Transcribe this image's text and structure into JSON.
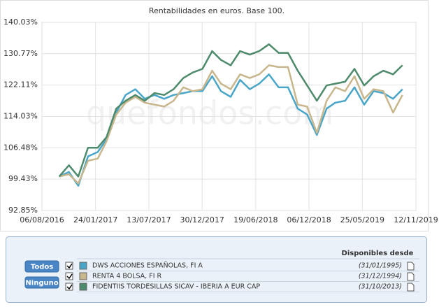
{
  "chart_data": {
    "type": "line",
    "title": "Rentabilidades en euros. Base 100.",
    "watermark": "quefondos.com",
    "log_scale": true,
    "grid": true,
    "x": [
      "2016-09-30",
      "2016-10-31",
      "2016-11-30",
      "2016-12-31",
      "2017-01-31",
      "2017-02-28",
      "2017-03-31",
      "2017-04-30",
      "2017-05-31",
      "2017-06-30",
      "2017-07-31",
      "2017-08-31",
      "2017-09-30",
      "2017-10-31",
      "2017-11-30",
      "2017-12-31",
      "2018-01-31",
      "2018-02-28",
      "2018-03-31",
      "2018-04-30",
      "2018-05-31",
      "2018-06-30",
      "2018-07-31",
      "2018-08-31",
      "2018-09-30",
      "2018-10-31",
      "2018-11-30",
      "2018-12-31",
      "2019-01-31",
      "2019-02-28",
      "2019-03-31",
      "2019-04-30",
      "2019-05-31",
      "2019-06-30",
      "2019-07-31",
      "2019-08-31",
      "2019-09-30"
    ],
    "xlim": [
      "2016-08-06",
      "2019-11-12"
    ],
    "xticks": [
      {
        "value": "2016-08-06",
        "label": "06/08/2016"
      },
      {
        "value": "2017-01-24",
        "label": "24/01/2017"
      },
      {
        "value": "2017-07-13",
        "label": "13/07/2017"
      },
      {
        "value": "2017-12-30",
        "label": "30/12/2017"
      },
      {
        "value": "2018-06-19",
        "label": "19/06/2018"
      },
      {
        "value": "2018-12-06",
        "label": "06/12/2018"
      },
      {
        "value": "2019-05-25",
        "label": "25/05/2019"
      },
      {
        "value": "2019-11-12",
        "label": "12/11/2019"
      }
    ],
    "ylim": [
      92.85,
      140.03
    ],
    "yticks": [
      {
        "value": 92.85,
        "label": "92.85%"
      },
      {
        "value": 99.43,
        "label": "99.43%"
      },
      {
        "value": 106.48,
        "label": "106.48%"
      },
      {
        "value": 114.03,
        "label": "114.03%"
      },
      {
        "value": 122.11,
        "label": "122.11%"
      },
      {
        "value": 130.77,
        "label": "130.77%"
      },
      {
        "value": 140.03,
        "label": "140.03%"
      }
    ],
    "series": [
      {
        "name": "DWS ACCIONES ESPAÑOLAS, FI A",
        "color": "#4aa6c9",
        "values": [
          100,
          101,
          98,
          104.5,
          105.5,
          108.5,
          115,
          119.5,
          121,
          118.5,
          119.5,
          118.5,
          119.5,
          120,
          120.5,
          120.5,
          124.5,
          120.5,
          119,
          123.5,
          121,
          122.5,
          125,
          121.5,
          121.5,
          116,
          114.5,
          109.5,
          116,
          117.5,
          118,
          121.5,
          117,
          120.5,
          120,
          118.5,
          121
        ]
      },
      {
        "name": "RENTA 4 BOLSA, FI R",
        "color": "#c8b68c",
        "values": [
          100,
          100.5,
          98.5,
          103.5,
          104,
          108,
          114.5,
          117.5,
          119,
          117.5,
          117,
          116.5,
          118,
          121.5,
          120.5,
          121,
          126,
          122.5,
          121,
          125,
          124,
          125,
          127.5,
          127,
          127,
          117,
          116.5,
          110,
          118,
          121.5,
          120.5,
          124.5,
          118.5,
          121,
          120.5,
          115,
          119.5
        ]
      },
      {
        "name": "FIDENTIIS TORDESILLAS SICAV - IBERIA A EUR CAP",
        "color": "#4e8a6c",
        "values": [
          100,
          102.5,
          100,
          106.5,
          106.5,
          109,
          116,
          118,
          119.5,
          118,
          120,
          119.5,
          121,
          124,
          125.5,
          126.5,
          131.5,
          129,
          127.5,
          131.5,
          130.5,
          131.5,
          133.5,
          131,
          131,
          126,
          122,
          118,
          122,
          122.5,
          123,
          126.5,
          122,
          124.5,
          126,
          125,
          127.5
        ]
      }
    ]
  },
  "panel": {
    "buttons": [
      "Todos",
      "Ninguno"
    ],
    "header": "Disponibles desde",
    "dates": [
      "(31/01/1995)",
      "(31/12/1994)",
      "(31/10/2013)"
    ]
  }
}
